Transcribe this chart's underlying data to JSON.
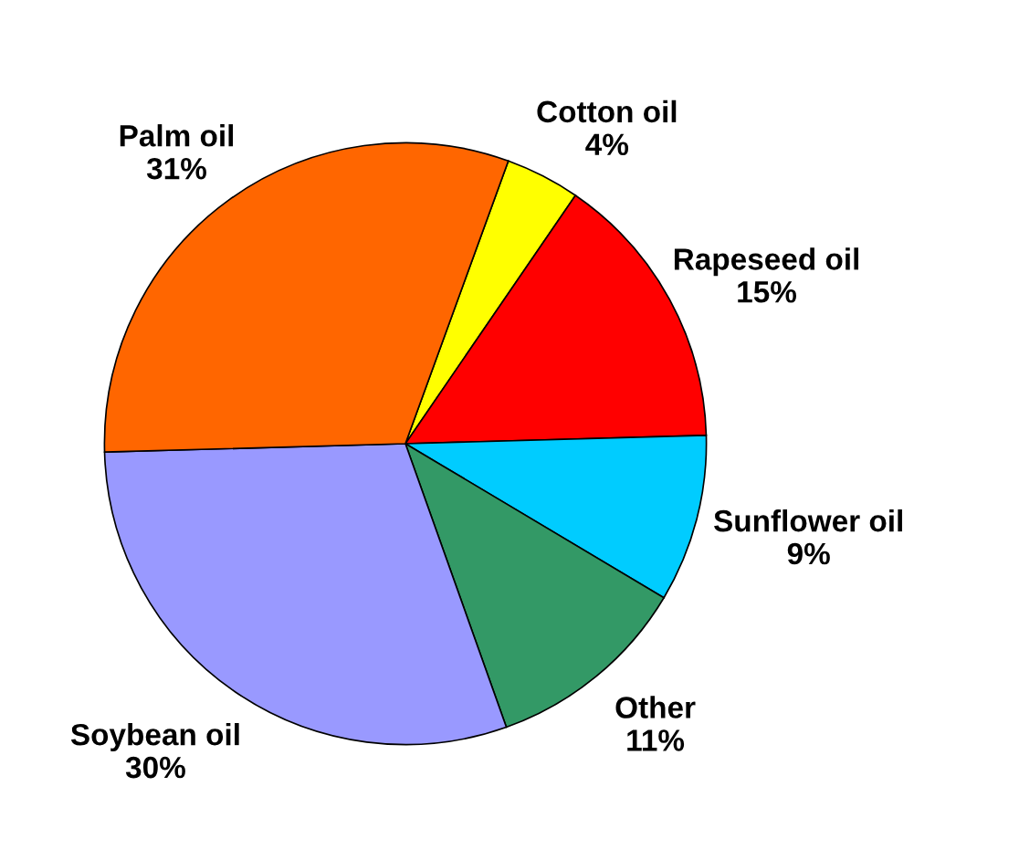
{
  "chart_data": {
    "type": "pie",
    "categories": [
      "Cotton oil",
      "Rapeseed oil",
      "Sunflower oil",
      "Other",
      "Soybean oil",
      "Palm oil"
    ],
    "values": [
      4,
      15,
      9,
      11,
      30,
      31
    ],
    "colors": [
      "#ffff00",
      "#ff0000",
      "#00ccff",
      "#339966",
      "#9999ff",
      "#ff6600"
    ],
    "value_labels": [
      "4%",
      "15%",
      "9%",
      "11%",
      "30%",
      "31%"
    ]
  }
}
